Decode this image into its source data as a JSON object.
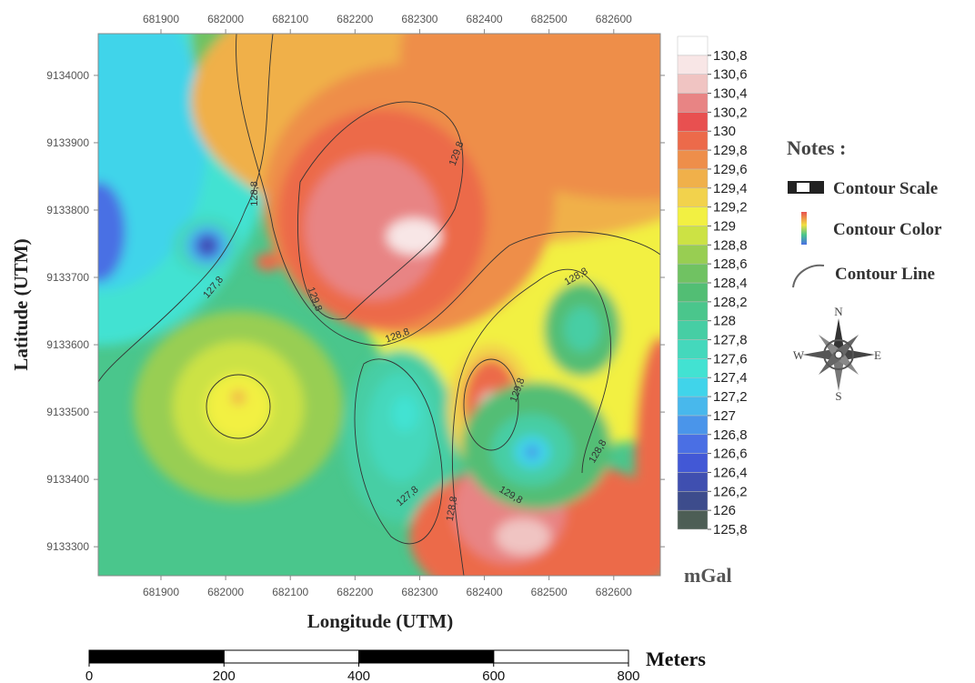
{
  "map": {
    "type": "contour",
    "x_label": "Longitude (UTM)",
    "y_label": "Latitude (UTM)",
    "xlim": [
      681803,
      682672
    ],
    "ylim": [
      9133257,
      9134062
    ],
    "xticks": [
      681900,
      682000,
      682100,
      682200,
      682300,
      682400,
      682500,
      682600
    ],
    "yticks": [
      9133300,
      9133400,
      9133500,
      9133600,
      9133700,
      9133800,
      9133900,
      9134000
    ],
    "colorbar": {
      "unit": "mGal",
      "zlim": [
        125.8,
        131.0
      ],
      "levels": [
        {
          "value": 125.8,
          "label": "125,8"
        },
        {
          "value": 126,
          "label": "126"
        },
        {
          "value": 126.2,
          "label": "126,2"
        },
        {
          "value": 126.4,
          "label": "126,4"
        },
        {
          "value": 126.6,
          "label": "126,6"
        },
        {
          "value": 126.8,
          "label": "126,8"
        },
        {
          "value": 127,
          "label": "127"
        },
        {
          "value": 127.2,
          "label": "127,2"
        },
        {
          "value": 127.4,
          "label": "127,4"
        },
        {
          "value": 127.6,
          "label": "127,6"
        },
        {
          "value": 127.8,
          "label": "127,8"
        },
        {
          "value": 128,
          "label": "128"
        },
        {
          "value": 128.2,
          "label": "128,2"
        },
        {
          "value": 128.4,
          "label": "128,4"
        },
        {
          "value": 128.6,
          "label": "128,6"
        },
        {
          "value": 128.8,
          "label": "128,8"
        },
        {
          "value": 129,
          "label": "129"
        },
        {
          "value": 129.2,
          "label": "129,2"
        },
        {
          "value": 129.4,
          "label": "129,4"
        },
        {
          "value": 129.6,
          "label": "129,6"
        },
        {
          "value": 129.8,
          "label": "129,8"
        },
        {
          "value": 130,
          "label": "130"
        },
        {
          "value": 130.2,
          "label": "130,2"
        },
        {
          "value": 130.4,
          "label": "130,4"
        },
        {
          "value": 130.6,
          "label": "130,6"
        },
        {
          "value": 130.8,
          "label": "130,8"
        }
      ],
      "colors": [
        "#4d5e55",
        "#3d4c8c",
        "#3f4fb0",
        "#4258d6",
        "#4a6fe4",
        "#4a95ea",
        "#48b8ec",
        "#40d4ea",
        "#42e2d2",
        "#44d8bc",
        "#46cea4",
        "#4ac68c",
        "#52be74",
        "#70c262",
        "#98ce52",
        "#cce244",
        "#f2f042",
        "#f2d24c",
        "#f0b04a",
        "#ee8e4a",
        "#ec6a4a",
        "#e85050",
        "#e88484",
        "#f0c4c2",
        "#f8e6e6",
        "#ffffff"
      ]
    },
    "contour_labels": [
      {
        "value": 129.8,
        "label": "129,8"
      },
      {
        "value": 128.8,
        "label": "128,8"
      },
      {
        "value": 127.8,
        "label": "127,8"
      },
      {
        "value": 129.8,
        "label": "129,8"
      },
      {
        "value": 128.8,
        "label": "128,8"
      },
      {
        "value": 128.8,
        "label": "128,8"
      },
      {
        "value": 129.8,
        "label": "129,8"
      },
      {
        "value": 128.8,
        "label": "128,8"
      },
      {
        "value": 128.8,
        "label": "128,8"
      },
      {
        "value": 127.8,
        "label": "127,8"
      },
      {
        "value": 129.8,
        "label": "129,8"
      }
    ],
    "notes": {
      "title": "Notes :",
      "items": [
        "Contour Scale",
        "Contour Color",
        "Contour Line"
      ]
    },
    "compass": {
      "n": "N",
      "e": "E",
      "s": "S",
      "w": "W"
    },
    "scalebar": {
      "ticks": [
        0,
        200,
        400,
        600,
        800
      ],
      "unit": "Meters"
    }
  }
}
